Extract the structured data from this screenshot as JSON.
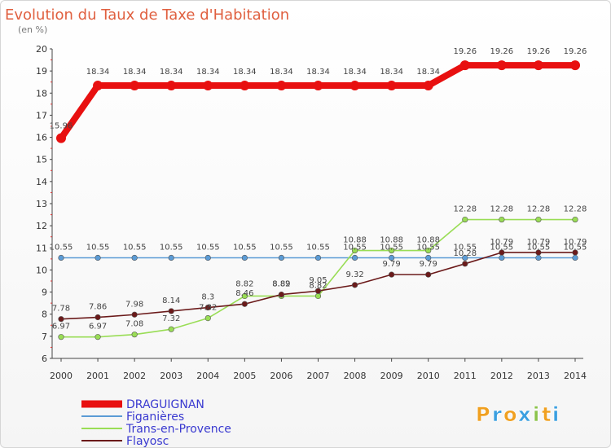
{
  "chart_data": {
    "type": "line",
    "title": "Evolution du Taux de Taxe d'Habitation",
    "subtitle": "(en %)",
    "xlabel": "",
    "ylabel": "",
    "x": [
      "2000",
      "2001",
      "2002",
      "2003",
      "2004",
      "2005",
      "2006",
      "2007",
      "2008",
      "2009",
      "2010",
      "2011",
      "2012",
      "2013",
      "2014"
    ],
    "ylim": [
      6,
      20
    ],
    "yticks": [
      6,
      7,
      8,
      9,
      10,
      11,
      12,
      13,
      14,
      15,
      16,
      17,
      18,
      19,
      20
    ],
    "grid": false,
    "legend_position": "bottom-left",
    "series": [
      {
        "name": "DRAGUIGNAN",
        "color": "#e81010",
        "values": [
          15.96,
          18.34,
          18.34,
          18.34,
          18.34,
          18.34,
          18.34,
          18.34,
          18.34,
          18.34,
          18.34,
          19.26,
          19.26,
          19.26,
          19.26
        ],
        "labels": [
          "15.96",
          "18.34",
          "18.34",
          "18.34",
          "18.34",
          "18.34",
          "18.34",
          "18.34",
          "18.34",
          "18.34",
          "18.34",
          "19.26",
          "19.26",
          "19.26",
          "19.26"
        ]
      },
      {
        "name": "Figanières",
        "color": "#5b9bd5",
        "values": [
          10.55,
          10.55,
          10.55,
          10.55,
          10.55,
          10.55,
          10.55,
          10.55,
          10.55,
          10.55,
          10.55,
          10.55,
          10.55,
          10.55,
          10.55
        ],
        "labels": [
          "10.55",
          "10.55",
          "10.55",
          "10.55",
          "10.55",
          "10.55",
          "10.55",
          "10.55",
          "10.55",
          "10.55",
          "10.55",
          "10.55",
          "10.55",
          "10.55",
          "10.55"
        ]
      },
      {
        "name": "Trans-en-Provence",
        "color": "#99dd55",
        "values": [
          6.97,
          6.97,
          7.08,
          7.32,
          7.82,
          8.82,
          8.82,
          8.82,
          10.88,
          10.88,
          10.88,
          12.28,
          12.28,
          12.28,
          12.28
        ],
        "labels": [
          "6.97",
          "6.97",
          "7.08",
          "7.32",
          "7.82",
          "8.82",
          "8.82",
          "8.82",
          "10.88",
          "10.88",
          "10.88",
          "12.28",
          "12.28",
          "12.28",
          "12.28"
        ]
      },
      {
        "name": "Flayosc",
        "color": "#6b1a1a",
        "values": [
          7.78,
          7.86,
          7.98,
          8.14,
          8.3,
          8.46,
          8.89,
          9.05,
          9.32,
          9.79,
          9.79,
          10.28,
          10.79,
          10.79,
          10.79
        ],
        "labels": [
          "7.78",
          "7.86",
          "7.98",
          "8.14",
          "8.3",
          "8.46",
          "8.89",
          "9.05",
          "9.32",
          "9.79",
          "9.79",
          "10.28",
          "10.79",
          "10.79",
          "10.79"
        ]
      }
    ]
  },
  "brand": {
    "letters": [
      "P",
      "r",
      "o",
      "x",
      "i",
      "t",
      "i"
    ],
    "colors": [
      "#f0a020",
      "#3a9fe0",
      "#f0a020",
      "#3a9fe0",
      "#8bc34a",
      "#f0a020",
      "#3a9fe0"
    ]
  }
}
